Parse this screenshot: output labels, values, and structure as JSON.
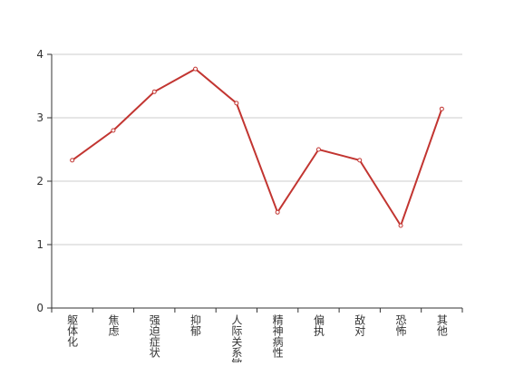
{
  "chart_data": {
    "type": "line",
    "categories": [
      "躯体化",
      "焦虑",
      "强迫症状",
      "抑郁",
      "人际关系敏感",
      "精神病性",
      "偏执",
      "敌对",
      "恐怖",
      "其他"
    ],
    "values": [
      2.33,
      2.8,
      3.41,
      3.77,
      3.23,
      1.51,
      2.5,
      2.33,
      1.3,
      3.14
    ],
    "color": "#c23531",
    "ylim": [
      0,
      4
    ],
    "yticks": [
      0,
      1,
      2,
      3,
      4
    ],
    "grid": true
  }
}
